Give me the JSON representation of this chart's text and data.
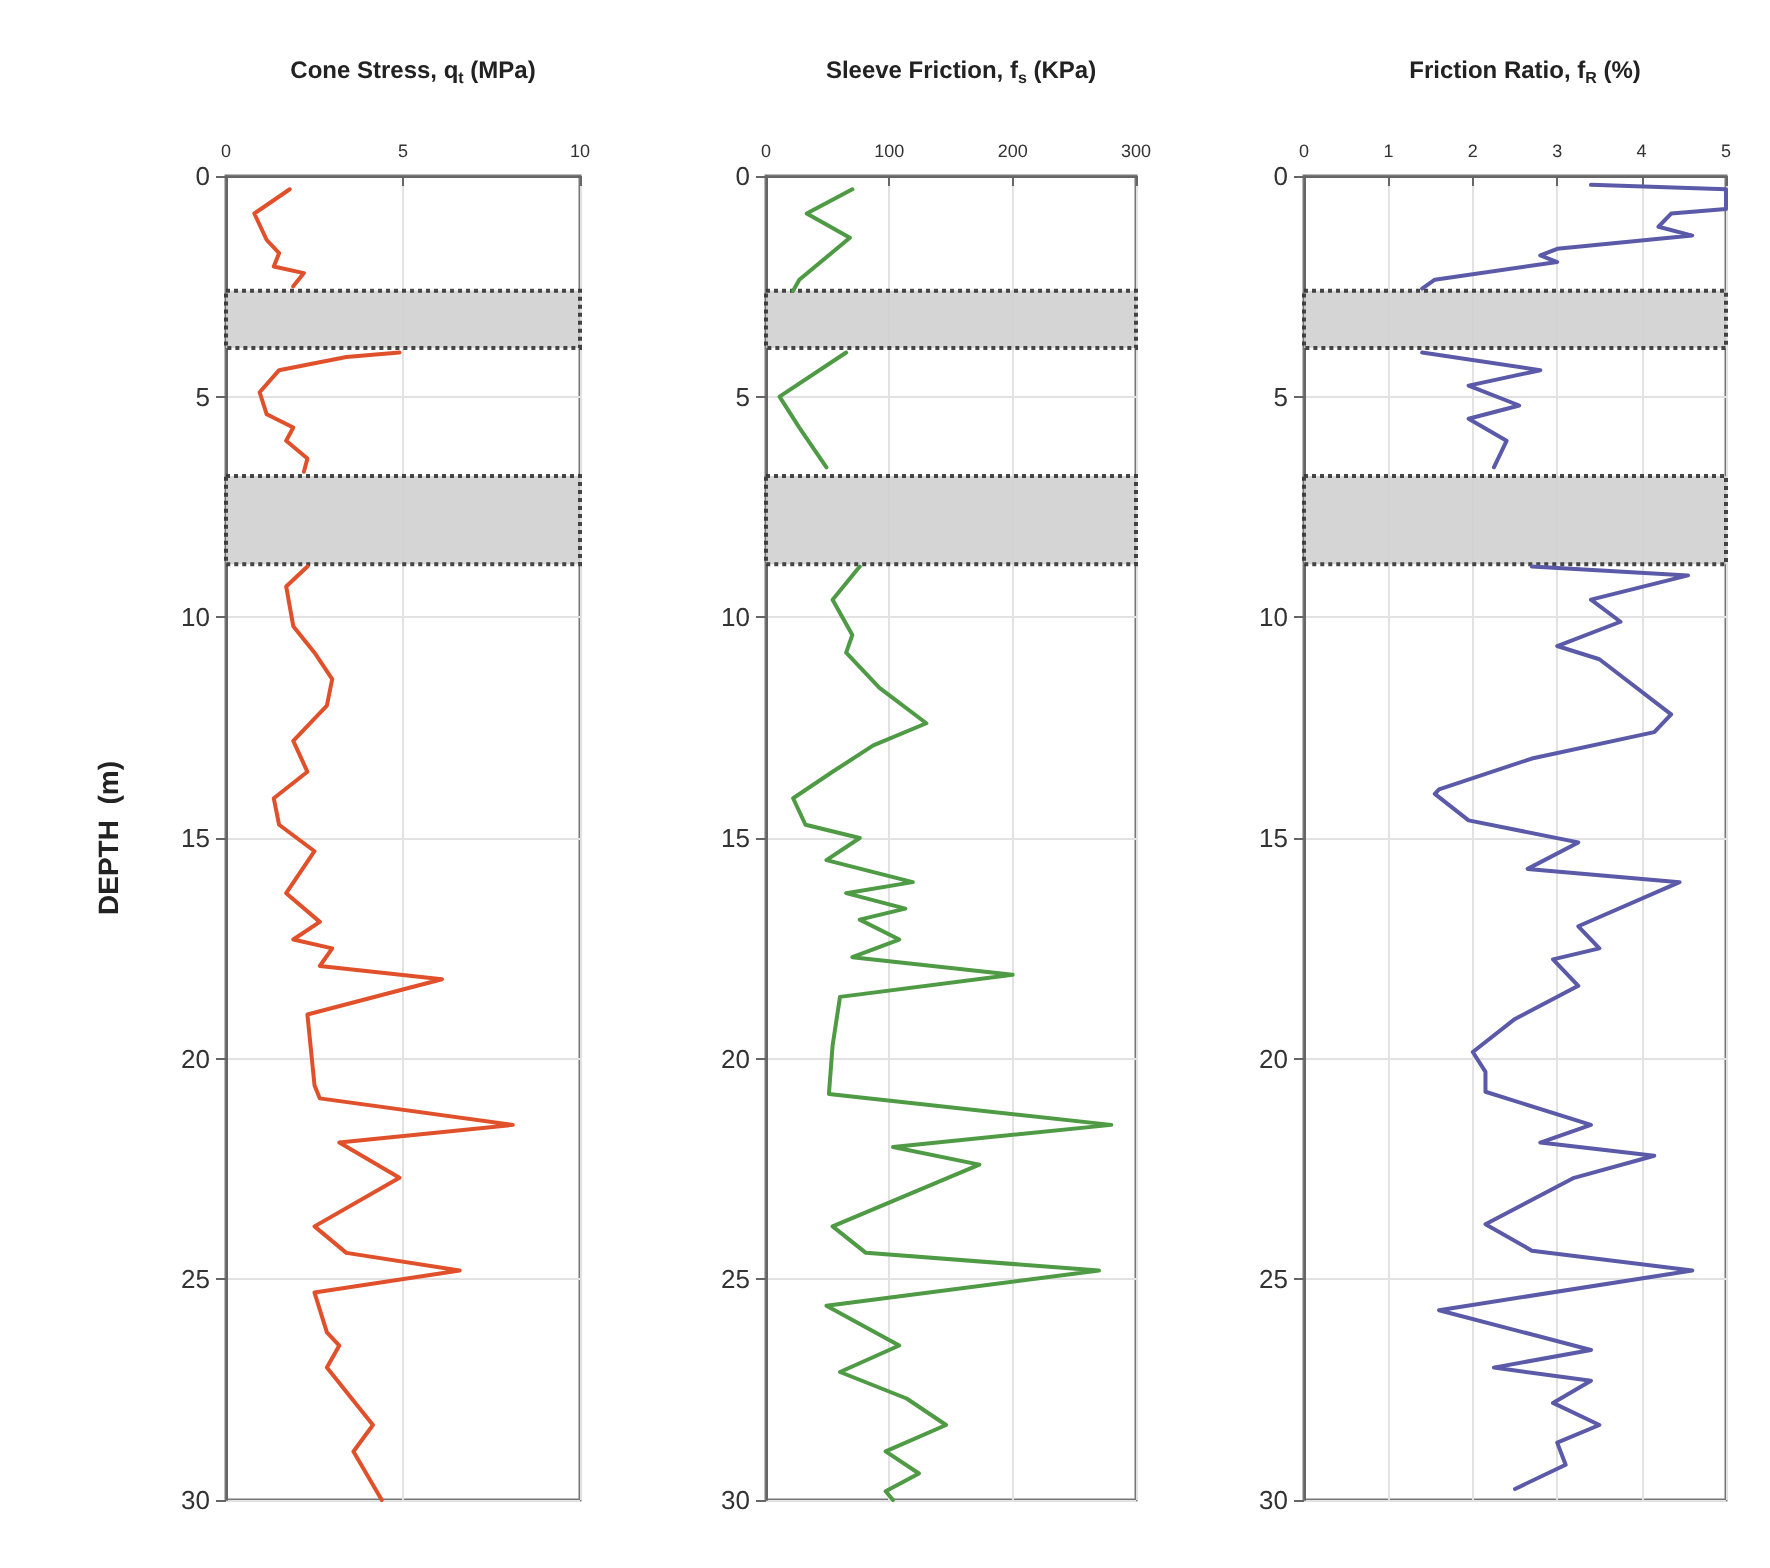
{
  "chart_data": [
    {
      "type": "line",
      "title": "Cone Stress, q$_{t}$ (MPa)",
      "ylabel": "DEPTH  (m)",
      "xlim": [
        0,
        10
      ],
      "xticks": [
        0,
        5,
        10
      ],
      "ylim": [
        30,
        0
      ],
      "yticks": [
        0,
        5,
        10,
        15,
        20,
        25,
        30
      ],
      "grid": true,
      "marker": "none",
      "bands": [
        {
          "axis": "y",
          "from": 2.6,
          "to": 3.9,
          "color": "#d0d0d0"
        },
        {
          "axis": "y",
          "from": 6.8,
          "to": 8.8,
          "color": "#d0d0d0"
        }
      ],
      "series": [
        {
          "color": "#e0502a",
          "x": [
            1.8,
            0.8,
            1.15,
            1.5,
            1.35,
            2.2,
            1.9,
            null,
            4.9,
            3.4,
            1.5,
            0.95,
            1.15,
            1.9,
            1.7,
            2.3,
            2.2,
            null,
            2.3,
            1.7,
            1.9,
            2.5,
            3.0,
            2.85,
            1.9,
            2.3,
            1.35,
            1.5,
            2.5,
            1.7,
            2.65,
            1.9,
            3.0,
            2.65,
            6.1,
            2.3,
            2.5,
            2.65,
            8.1,
            3.2,
            4.9,
            2.5,
            3.4,
            6.6,
            2.5,
            2.85,
            3.2,
            2.85,
            4.15,
            3.6,
            4.4
          ],
          "values": [
            0.3,
            0.85,
            1.45,
            1.75,
            2.05,
            2.2,
            2.5,
            null,
            4.0,
            4.1,
            4.4,
            4.9,
            5.4,
            5.7,
            6.0,
            6.4,
            6.7,
            null,
            8.85,
            9.3,
            10.2,
            10.8,
            11.4,
            12.0,
            12.8,
            13.5,
            14.1,
            14.7,
            15.3,
            16.25,
            16.9,
            17.3,
            17.5,
            17.9,
            18.2,
            19.0,
            20.6,
            20.9,
            21.5,
            21.9,
            22.7,
            23.8,
            24.4,
            24.8,
            25.3,
            26.2,
            26.5,
            27.0,
            28.3,
            28.9,
            30.0
          ]
        }
      ]
    },
    {
      "type": "line",
      "title": "Sleeve Friction, f$_{s}$ (KPa)",
      "xlim": [
        0,
        300
      ],
      "xticks": [
        0,
        100,
        200,
        300
      ],
      "ylim": [
        30,
        0
      ],
      "yticks": [
        0,
        5,
        10,
        15,
        20,
        25,
        30
      ],
      "grid": true,
      "marker": "none",
      "bands": [
        {
          "axis": "y",
          "from": 2.6,
          "to": 3.9,
          "color": "#d0d0d0"
        },
        {
          "axis": "y",
          "from": 6.8,
          "to": 8.8,
          "color": "#d0d0d0"
        }
      ],
      "series": [
        {
          "color": "#4f9a44",
          "x": [
            70,
            33,
            68,
            27,
            22,
            null,
            65,
            11,
            27,
            49,
            null,
            76,
            54,
            70,
            65,
            92,
            130,
            87,
            54,
            22,
            32,
            76,
            49,
            119,
            65,
            113,
            76,
            108,
            70,
            200,
            60,
            54,
            51,
            280,
            103,
            173,
            54,
            81,
            270,
            49,
            108,
            60,
            114,
            146,
            97,
            124,
            97,
            103
          ],
          "values": [
            0.3,
            0.85,
            1.4,
            2.35,
            2.6,
            null,
            4.0,
            5.0,
            5.7,
            6.6,
            null,
            8.85,
            9.6,
            10.4,
            10.8,
            11.6,
            12.4,
            12.9,
            13.5,
            14.1,
            14.7,
            15.0,
            15.5,
            16.0,
            16.25,
            16.6,
            16.85,
            17.3,
            17.7,
            18.1,
            18.6,
            19.7,
            20.8,
            21.5,
            22.0,
            22.4,
            23.8,
            24.4,
            24.8,
            25.6,
            26.5,
            27.1,
            27.7,
            28.3,
            28.9,
            29.4,
            29.8,
            30.0
          ]
        }
      ]
    },
    {
      "type": "line",
      "title": "Friction Ratio, f$_{R}$ (%)",
      "xlim": [
        0,
        5
      ],
      "xticks": [
        0,
        1,
        2,
        3,
        4,
        5
      ],
      "ylim": [
        30,
        0
      ],
      "yticks": [
        0,
        5,
        10,
        15,
        20,
        25,
        30
      ],
      "grid": true,
      "marker": "none",
      "bands": [
        {
          "axis": "y",
          "from": 2.6,
          "to": 3.9,
          "color": "#d0d0d0"
        },
        {
          "axis": "y",
          "from": 6.8,
          "to": 8.8,
          "color": "#d0d0d0"
        }
      ],
      "series": [
        {
          "color": "#5a5aa8",
          "x": [
            3.4,
            5.0,
            5.0,
            4.35,
            4.2,
            4.6,
            3.0,
            2.8,
            3.0,
            1.55,
            1.4,
            null,
            1.4,
            2.8,
            1.95,
            2.55,
            1.95,
            2.4,
            2.25,
            null,
            2.7,
            4.55,
            3.4,
            3.75,
            3.0,
            3.5,
            4.35,
            4.15,
            2.7,
            1.6,
            1.55,
            1.95,
            3.25,
            2.65,
            4.45,
            3.25,
            3.5,
            2.95,
            3.25,
            2.5,
            2.0,
            2.15,
            2.15,
            3.4,
            2.8,
            4.15,
            3.2,
            2.15,
            2.7,
            4.6,
            1.6,
            3.4,
            2.25,
            3.4,
            2.95,
            3.5,
            3.0,
            3.1,
            2.5
          ],
          "values": [
            0.2,
            0.3,
            0.75,
            0.85,
            1.15,
            1.35,
            1.65,
            1.8,
            1.95,
            2.35,
            2.55,
            null,
            4.0,
            4.4,
            4.75,
            5.2,
            5.5,
            6.0,
            6.6,
            null,
            8.85,
            9.05,
            9.6,
            10.1,
            10.65,
            10.95,
            12.2,
            12.6,
            13.2,
            13.9,
            14.0,
            14.6,
            15.1,
            15.7,
            16.0,
            17.0,
            17.5,
            17.75,
            18.35,
            19.1,
            19.85,
            20.3,
            20.75,
            21.5,
            21.9,
            22.2,
            22.7,
            23.75,
            24.35,
            24.8,
            25.7,
            26.6,
            27.0,
            27.3,
            27.8,
            28.3,
            28.7,
            29.2,
            29.75
          ]
        }
      ]
    }
  ]
}
